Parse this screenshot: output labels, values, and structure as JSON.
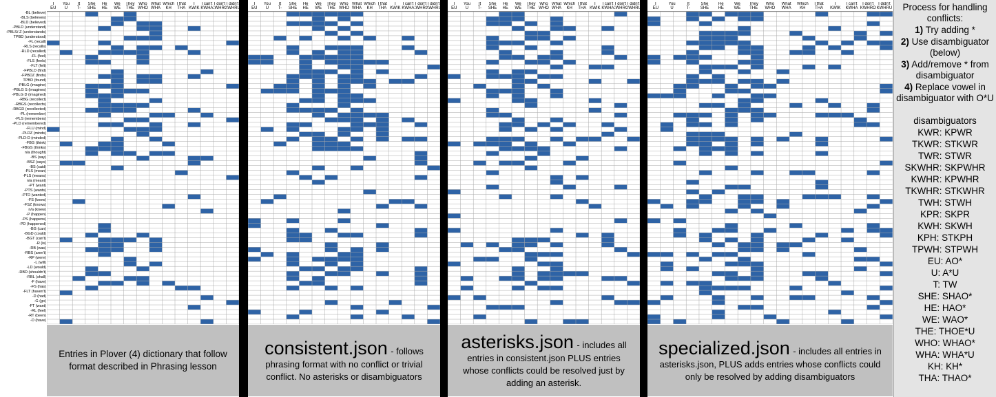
{
  "headers": [
    {
      "top": "I",
      "bottom": "EU"
    },
    {
      "top": "You",
      "bottom": "U"
    },
    {
      "top": "It",
      "bottom": "T-"
    },
    {
      "top": "She",
      "bottom": "SHE"
    },
    {
      "top": "He",
      "bottom": "HE"
    },
    {
      "top": "We",
      "bottom": "WE"
    },
    {
      "top": "They",
      "bottom": "THE"
    },
    {
      "top": "Who",
      "bottom": "WHO"
    },
    {
      "top": "What",
      "bottom": "WHA"
    },
    {
      "top": "Which",
      "bottom": "KH"
    },
    {
      "top": "I that",
      "bottom": "THA"
    },
    {
      "top": "I",
      "bottom": "KWIK"
    },
    {
      "top": "I can't",
      "bottom": "KWHA"
    },
    {
      "top": "I don't",
      "bottom": "KWHRO"
    },
    {
      "top": "I didn't",
      "bottom": "KWHRU"
    }
  ],
  "row_labels": [
    "-BL (believe)",
    "-BLS (believes)",
    "-BLD (believed)",
    "-PBLD (understand)",
    "-PBLS/-Z (understands)",
    "TPBD (understood)",
    "-FL (recall)",
    "-RLS (recalls)",
    "-RLD (recalled)",
    "-FL (feel)",
    "-FLS (feels)",
    "-FLT (felt)",
    "-FPBLD (find)",
    "-FPBDZ (finds)",
    "TPBD (found)",
    "-PBLG (imagine)",
    "-PBLG S (imagines)",
    "-PBLG D (imagined)",
    "-RBG (recollect)",
    "-RBGS (recollects)",
    "-RBGD (recollected)",
    "-PL (remember)",
    "-PLS (remembers)",
    "-PLD (remembered)",
    "-FLU (mind)",
    "-PLDZ (minds)",
    "-PLD-D (minded)",
    "-FBG (think)",
    "-FBGS (thinks)",
    "n/a (thought)",
    "-BS (say)",
    "-BSZ (says)",
    "-BS (said)",
    "-PLS (mean)",
    "-PLS (means)",
    "n/a (meant)",
    "-PT (want)",
    "-PTS (wants)",
    "-PTD (wanted)",
    "-FS (know)",
    "-FSZ (knows)",
    "n/a (knew)",
    "-P (happen)",
    "-PS (happens)",
    "-PD (happened)",
    "-BG (can)",
    "-BGD (could)",
    "-BGT (can't)",
    "-R (is)",
    "-RB (was)",
    "-RBS (aren't)",
    "-RP (were)",
    "-L (will)",
    "-LD (would)",
    "-RBD (shouldn't)",
    "-RBL (shall)",
    "-F (have)",
    "-FS (has)",
    "-FLT (haven't)",
    "-D (had)",
    "-G (go)",
    "-FT (want)",
    "-RL (feel)",
    "-RT (been)",
    "-D (have)"
  ],
  "captions": {
    "plover_text": "Entries in Plover (4) dictionary that follow format described in Phrasing lesson",
    "consistent_title": "consistent.json",
    "consistent_text": "- follows phrasing format with no conflict or trivial conflict. No asterisks or disambiguators",
    "asterisks_title": "asterisks.json",
    "asterisks_text": "- includes all entries in consistent.json PLUS entries whose conflicts could be resolved just by adding an asterisk.",
    "specialized_title": "specialized.json",
    "specialized_text": "- includes all entries in asterisks.json, PLUS adds entries whose conflicts could only be resolved by adding disambiguators"
  },
  "process": {
    "title_line1": "Process for handling",
    "title_line2": "conflicts:",
    "steps": [
      {
        "num": "1)",
        "text": "Try adding *"
      },
      {
        "num": "2)",
        "text": "Use disambiguator (below)"
      },
      {
        "num": "3)",
        "text": "Add/remove * from disambiguator"
      },
      {
        "num": "4)",
        "text": "Replace vowel in disambiguator with O*U"
      }
    ]
  },
  "disambiguators": {
    "title": "disambiguators",
    "items": [
      "KWR: KPWR",
      "TKWR: STKWR",
      "TWR: STWR",
      "SKWHR: SKPWHR",
      "KWHR: KPWHR",
      "TKWHR: STKWHR",
      "TWH: STWH",
      "KPR: SKPR",
      "KWH: SKWH",
      "KPH: STKPH",
      "TPWH: STPWH",
      "EU: AO*",
      "U: A*U",
      "T: TW",
      "SHE: SHAO*",
      "HE: HAO*",
      "WE: WAO*",
      "THE: THOE*U",
      "WHO: WHAO*",
      "WHA: WHA*U",
      "KH: KH*",
      "THA: THAO*"
    ]
  },
  "colors": {
    "fill": "#2e63a6",
    "grid": "#a8a8a8",
    "caption_bg": "#c0c0c0",
    "panel_bg": "#e4e4e4",
    "divider": "#000000"
  }
}
